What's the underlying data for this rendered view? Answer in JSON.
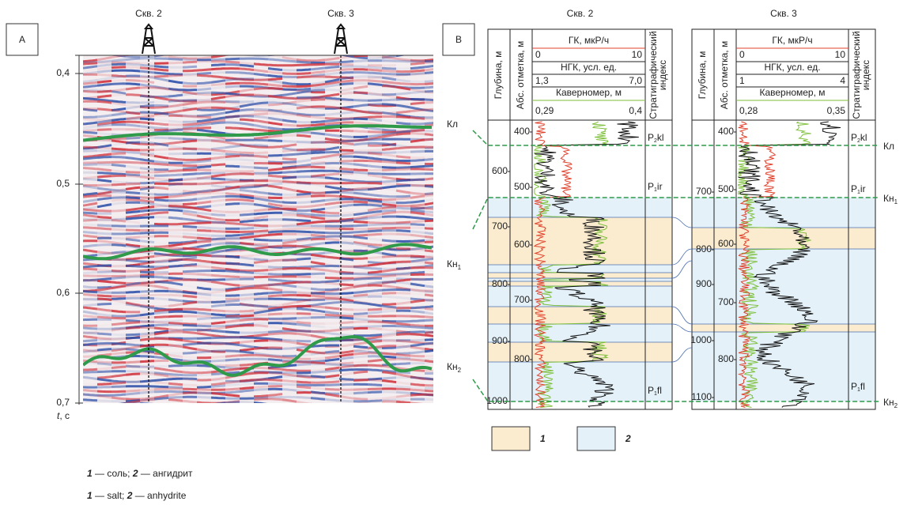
{
  "panel_a": {
    "label": "A",
    "wells": [
      "Скв. 2",
      "Скв. 3"
    ],
    "yticks": [
      "0,4",
      "0,5",
      "0,6",
      "0,7"
    ],
    "axis_label": {
      "var": "t",
      "rest": ", с"
    },
    "horizons": [
      {
        "name": "Кл"
      },
      {
        "name": "Кн",
        "sub": "1"
      },
      {
        "name": "Кн",
        "sub": "2"
      }
    ]
  },
  "panel_b": {
    "label": "B",
    "columns": {
      "depth": "Глубина, м",
      "abs": "Абс. отметка, м",
      "strat": [
        "Стратиграфический",
        "индекс"
      ]
    },
    "wells": [
      {
        "title": "Скв. 2",
        "gk": "ГК, мкР/ч",
        "gk_min": "0",
        "gk_max": "10",
        "ngk": "НГК, усл. ед.",
        "ngk_min": "1,3",
        "ngk_max": "7,0",
        "cal": "Каверномер, м",
        "cal_min": "0,29",
        "cal_max": "0,4",
        "depth_ticks": [
          "600",
          "700",
          "800",
          "900",
          "1000"
        ],
        "abs_ticks": [
          "400",
          "500",
          "600",
          "700",
          "800"
        ],
        "strat": [
          {
            "main": "P",
            "sub": "2",
            "rest": "kl"
          },
          {
            "main": "P",
            "sub": "1",
            "rest": "ir"
          },
          {
            "main": "P",
            "sub": "1",
            "rest": "fl"
          }
        ]
      },
      {
        "title": "Скв. 3",
        "gk": "ГК, мкР/ч",
        "gk_min": "0",
        "gk_max": "10",
        "ngk": "НГК, усл. ед.",
        "ngk_min": "1",
        "ngk_max": "4",
        "cal": "Каверномер, м",
        "cal_min": "0,28",
        "cal_max": "0,35",
        "depth_ticks": [
          "700",
          "800",
          "900",
          "1000",
          "1100"
        ],
        "abs_ticks": [
          "400",
          "500",
          "600",
          "700",
          "800"
        ],
        "strat": [
          {
            "main": "P",
            "sub": "2",
            "rest": "kl"
          },
          {
            "main": "P",
            "sub": "1",
            "rest": "ir"
          },
          {
            "main": "P",
            "sub": "1",
            "rest": "fl"
          }
        ]
      }
    ],
    "horizons_left": [
      {
        "name": "Кл"
      },
      {
        "name": "Кн",
        "sub": "1"
      },
      {
        "name": "Кн",
        "sub": "2"
      }
    ],
    "horizons_right": [
      {
        "name": "Кл"
      },
      {
        "name": "Кн",
        "sub": "1"
      },
      {
        "name": "Кн",
        "sub": "2"
      }
    ]
  },
  "legend": [
    {
      "label": "1"
    },
    {
      "label": "2"
    }
  ],
  "caption_ru": [
    {
      "num": "1",
      "text": " — соль; "
    },
    {
      "num": "2",
      "text": " — ангидрит"
    }
  ],
  "caption_en": [
    {
      "num": "1",
      "text": " — salt; "
    },
    {
      "num": "2",
      "text": " — anhydrite"
    }
  ]
}
